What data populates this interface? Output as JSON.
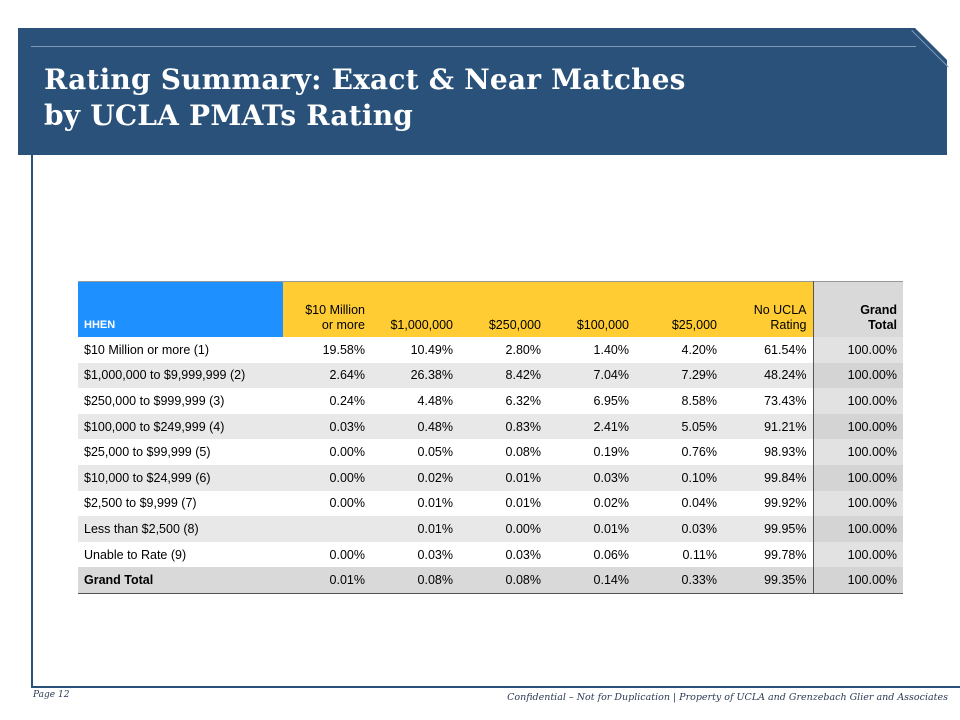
{
  "title": {
    "line1": "Rating Summary: Exact & Near Matches",
    "line2": "by UCLA PMATs Rating"
  },
  "table": {
    "header": {
      "hhen": "HHEN",
      "col1": [
        "$10 Million",
        "or more"
      ],
      "col2": "$1,000,000",
      "col3": "$250,000",
      "col4": "$100,000",
      "col5": "$25,000",
      "col6": [
        "No UCLA",
        "Rating"
      ],
      "grand": [
        "Grand",
        "Total"
      ]
    },
    "rows": [
      {
        "label": "$10 Million or more (1)",
        "values": [
          "19.58%",
          "10.49%",
          "2.80%",
          "1.40%",
          "4.20%",
          "61.54%",
          "100.00%"
        ]
      },
      {
        "label": "$1,000,000 to $9,999,999 (2)",
        "values": [
          "2.64%",
          "26.38%",
          "8.42%",
          "7.04%",
          "7.29%",
          "48.24%",
          "100.00%"
        ]
      },
      {
        "label": "$250,000 to $999,999 (3)",
        "values": [
          "0.24%",
          "4.48%",
          "6.32%",
          "6.95%",
          "8.58%",
          "73.43%",
          "100.00%"
        ]
      },
      {
        "label": "$100,000 to $249,999 (4)",
        "values": [
          "0.03%",
          "0.48%",
          "0.83%",
          "2.41%",
          "5.05%",
          "91.21%",
          "100.00%"
        ]
      },
      {
        "label": "$25,000 to $99,999 (5)",
        "values": [
          "0.00%",
          "0.05%",
          "0.08%",
          "0.19%",
          "0.76%",
          "98.93%",
          "100.00%"
        ]
      },
      {
        "label": "$10,000 to $24,999 (6)",
        "values": [
          "0.00%",
          "0.02%",
          "0.01%",
          "0.03%",
          "0.10%",
          "99.84%",
          "100.00%"
        ]
      },
      {
        "label": "$2,500 to $9,999 (7)",
        "values": [
          "0.00%",
          "0.01%",
          "0.01%",
          "0.02%",
          "0.04%",
          "99.92%",
          "100.00%"
        ]
      },
      {
        "label": "Less than $2,500 (8)",
        "values": [
          "",
          "0.01%",
          "0.00%",
          "0.01%",
          "0.03%",
          "99.95%",
          "100.00%"
        ]
      },
      {
        "label": "Unable to Rate (9)",
        "values": [
          "0.00%",
          "0.03%",
          "0.03%",
          "0.06%",
          "0.11%",
          "99.78%",
          "100.00%"
        ]
      },
      {
        "label": "Grand Total",
        "values": [
          "0.01%",
          "0.08%",
          "0.08%",
          "0.14%",
          "0.33%",
          "99.35%",
          "100.00%"
        ]
      }
    ]
  },
  "footer": {
    "page": "Page 12",
    "note": "Confidential – Not for Duplication | Property of UCLA and Grenzebach Glier and Associates"
  },
  "colors": {
    "title_band": "#2a5179",
    "hhen_header": "#1e90ff",
    "rating_header": "#ffcc33",
    "grand_header": "#d9d9d9"
  }
}
